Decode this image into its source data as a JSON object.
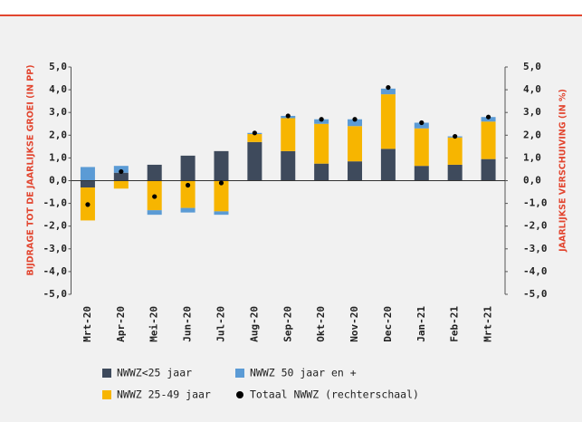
{
  "chart_data": {
    "type": "bar",
    "ylabel": "BIJDRAGE TOT DE JAARLIJKSE GROEI (IN PP)",
    "y2label": "JAARLIJKSE VERSCHUIVING (IN %)",
    "categories": [
      "Mrt-20",
      "Apr-20",
      "Mei-20",
      "Jun-20",
      "Jul-20",
      "Aug-20",
      "Sep-20",
      "Okt-20",
      "Nov-20",
      "Dec-20",
      "Jan-21",
      "Feb-21",
      "Mrt-21"
    ],
    "stacked": true,
    "series": [
      {
        "name": "NWWZ<25 jaar",
        "color": "#3e4a5c",
        "values": [
          -0.3,
          0.35,
          0.7,
          1.1,
          1.3,
          1.7,
          1.3,
          0.75,
          0.85,
          1.4,
          0.65,
          0.7,
          0.95
        ]
      },
      {
        "name": "NWWZ 25-49 jaar",
        "color": "#f7b500",
        "values": [
          -1.45,
          -0.35,
          -1.3,
          -1.2,
          -1.35,
          0.35,
          1.45,
          1.75,
          1.55,
          2.4,
          1.65,
          1.2,
          1.65
        ]
      },
      {
        "name": "NWWZ 50 jaar en +",
        "color": "#5b9bd5",
        "values": [
          0.6,
          0.3,
          -0.2,
          -0.2,
          -0.15,
          0.05,
          0.1,
          0.2,
          0.3,
          0.25,
          0.25,
          0.05,
          0.2
        ]
      },
      {
        "name": "Totaal NWWZ (rechterschaal)",
        "color": "#000000",
        "type": "scatter",
        "axis": "y2",
        "values": [
          -1.05,
          0.4,
          -0.7,
          -0.2,
          -0.1,
          2.1,
          2.85,
          2.7,
          2.7,
          4.1,
          2.55,
          1.95,
          2.8
        ]
      }
    ],
    "ylim": [
      -5,
      5
    ],
    "yticks": [
      {
        "value": 5,
        "label": "5,0"
      },
      {
        "value": 4,
        "label": "4,0"
      },
      {
        "value": 3,
        "label": "3,0"
      },
      {
        "value": 2,
        "label": "2,0"
      },
      {
        "value": 1,
        "label": "1,0"
      },
      {
        "value": 0,
        "label": "0,0"
      },
      {
        "value": -1,
        "label": "-1,0"
      },
      {
        "value": -2,
        "label": "-2,0"
      },
      {
        "value": -3,
        "label": "-3,0"
      },
      {
        "value": -4,
        "label": "-4,0"
      },
      {
        "value": -5,
        "label": "-5,0"
      }
    ],
    "y2lim": [
      -5,
      5
    ],
    "y2ticks": [
      {
        "value": 5,
        "label": "5,0"
      },
      {
        "value": 4,
        "label": "4,0"
      },
      {
        "value": 3,
        "label": "3,0"
      },
      {
        "value": 2,
        "label": "2,0"
      },
      {
        "value": 1,
        "label": "1,0"
      },
      {
        "value": 0,
        "label": "0,0"
      },
      {
        "value": -1,
        "label": "-1,0"
      },
      {
        "value": -2,
        "label": "-2,0"
      },
      {
        "value": -3,
        "label": "-3,0"
      },
      {
        "value": -4,
        "label": "-4,0"
      },
      {
        "value": -5,
        "label": "-5,0"
      }
    ]
  }
}
